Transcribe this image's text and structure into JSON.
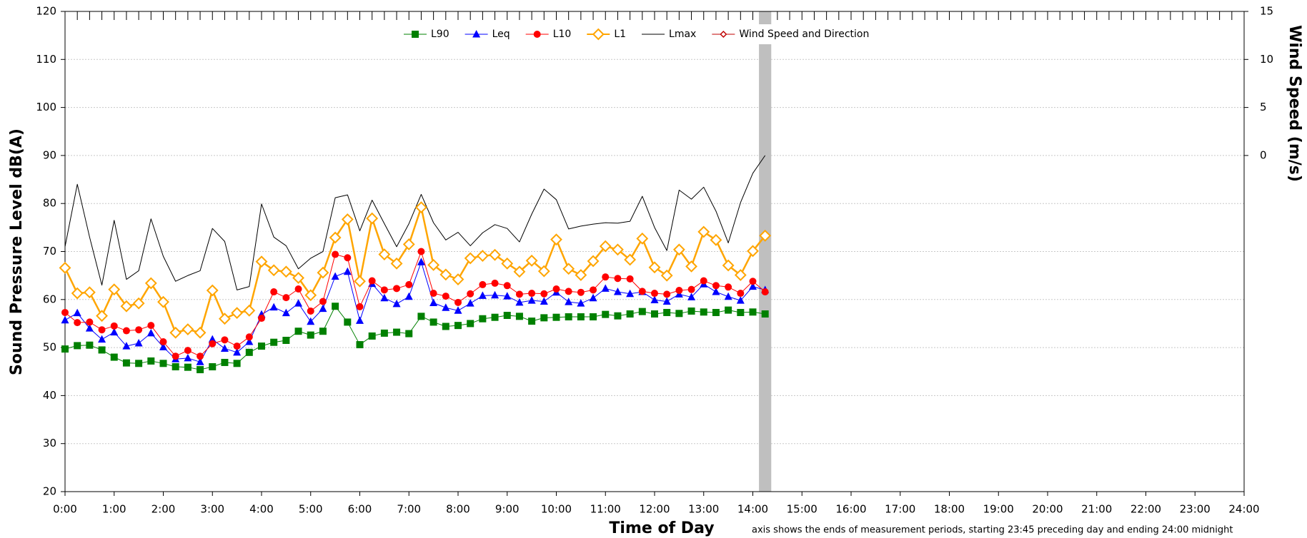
{
  "chart_data": {
    "type": "line",
    "x_label": "Time of Day",
    "y_label": "Sound Pressure Level dB(A)",
    "y2_label": "Wind Speed (m/s)",
    "note": "axis shows the ends of measurement periods, starting 23:45 preceding day and ending 24:00 midnight",
    "xlim": [
      0,
      24
    ],
    "xticks": [
      {
        "value": 0,
        "label": "0:00"
      },
      {
        "value": 1,
        "label": "1:00"
      },
      {
        "value": 2,
        "label": "2:00"
      },
      {
        "value": 3,
        "label": "3:00"
      },
      {
        "value": 4,
        "label": "4:00"
      },
      {
        "value": 5,
        "label": "5:00"
      },
      {
        "value": 6,
        "label": "6:00"
      },
      {
        "value": 7,
        "label": "7:00"
      },
      {
        "value": 8,
        "label": "8:00"
      },
      {
        "value": 9,
        "label": "9:00"
      },
      {
        "value": 10,
        "label": "10:00"
      },
      {
        "value": 11,
        "label": "11:00"
      },
      {
        "value": 12,
        "label": "12:00"
      },
      {
        "value": 13,
        "label": "13:00"
      },
      {
        "value": 14,
        "label": "14:00"
      },
      {
        "value": 15,
        "label": "15:00"
      },
      {
        "value": 16,
        "label": "16:00"
      },
      {
        "value": 17,
        "label": "17:00"
      },
      {
        "value": 18,
        "label": "18:00"
      },
      {
        "value": 19,
        "label": "19:00"
      },
      {
        "value": 20,
        "label": "20:00"
      },
      {
        "value": 21,
        "label": "21:00"
      },
      {
        "value": 22,
        "label": "22:00"
      },
      {
        "value": 23,
        "label": "23:00"
      },
      {
        "value": 24,
        "label": "24:00"
      }
    ],
    "ylim": [
      20,
      120
    ],
    "yticks": [
      20,
      30,
      40,
      50,
      60,
      70,
      80,
      90,
      100,
      110,
      120
    ],
    "y2lim": [
      -35,
      15
    ],
    "y2ticks": [
      0,
      5,
      10,
      15
    ],
    "grid": true,
    "legend": "top",
    "shaded_x": [
      14.125,
      14.375
    ],
    "shaded_color": "#bfbfbf",
    "x": [
      0,
      0.25,
      0.5,
      0.75,
      1,
      1.25,
      1.5,
      1.75,
      2,
      2.25,
      2.5,
      2.75,
      3,
      3.25,
      3.5,
      3.75,
      4,
      4.25,
      4.5,
      4.75,
      5,
      5.25,
      5.5,
      5.75,
      6,
      6.25,
      6.5,
      6.75,
      7,
      7.25,
      7.5,
      7.75,
      8,
      8.25,
      8.5,
      8.75,
      9,
      9.25,
      9.5,
      9.75,
      10,
      10.25,
      10.5,
      10.75,
      11,
      11.25,
      11.5,
      11.75,
      12,
      12.25,
      12.5,
      12.75,
      13,
      13.25,
      13.5,
      13.75,
      14,
      14.25
    ],
    "series": [
      {
        "name": "L90",
        "color": "#008000",
        "marker": "square",
        "line_width": 1,
        "values": [
          49.7,
          50.4,
          50.5,
          49.5,
          48,
          46.8,
          46.7,
          47.2,
          46.7,
          46,
          45.9,
          45.4,
          46,
          46.9,
          46.7,
          49,
          50.3,
          51.1,
          51.5,
          53.4,
          52.6,
          53.4,
          58.6,
          55.3,
          50.6,
          52.4,
          53,
          53.2,
          52.9,
          56.5,
          55.3,
          54.4,
          54.6,
          55,
          56,
          56.3,
          56.7,
          56.5,
          55.5,
          56.2,
          56.3,
          56.4,
          56.4,
          56.4,
          56.9,
          56.6,
          57,
          57.5,
          57,
          57.3,
          57.1,
          57.6,
          57.4,
          57.3,
          57.8,
          57.3,
          57.4,
          57
        ]
      },
      {
        "name": "Leq",
        "color": "#0000ff",
        "marker": "triangle",
        "line_width": 1,
        "values": [
          55.7,
          57.2,
          54,
          51.7,
          53.2,
          50.3,
          50.9,
          53,
          50.1,
          47.6,
          47.8,
          47,
          51.7,
          49.8,
          49,
          51.2,
          56.9,
          58.4,
          57.2,
          59.2,
          55.4,
          58.1,
          64.8,
          65.8,
          55.6,
          63.3,
          60.3,
          59.1,
          60.6,
          67.8,
          59.3,
          58.3,
          57.7,
          59.2,
          60.8,
          60.9,
          60.7,
          59.4,
          59.8,
          59.6,
          61.5,
          59.5,
          59.2,
          60.3,
          62.3,
          61.6,
          61.2,
          61.6,
          59.9,
          59.6,
          61.1,
          60.5,
          63.2,
          61.6,
          60.6,
          59.8,
          62.7,
          62
        ]
      },
      {
        "name": "L10",
        "color": "#ff0000",
        "marker": "circle",
        "line_width": 1,
        "values": [
          57.3,
          55.2,
          55.3,
          53.7,
          54.5,
          53.5,
          53.7,
          54.6,
          51.2,
          48.2,
          49.4,
          48.2,
          50.8,
          51.6,
          50.3,
          52.2,
          56.1,
          61.6,
          60.4,
          62.2,
          57.6,
          59.6,
          69.4,
          68.7,
          58.5,
          63.9,
          62,
          62.3,
          63.1,
          70,
          61.3,
          60.7,
          59.4,
          61.2,
          63.1,
          63.4,
          62.9,
          61.1,
          61.3,
          61.2,
          62.2,
          61.7,
          61.5,
          62,
          64.7,
          64.4,
          64.3,
          61.7,
          61.3,
          61.1,
          61.9,
          62.1,
          63.9,
          62.9,
          62.6,
          61.3,
          63.8,
          61.6
        ]
      },
      {
        "name": "L1",
        "color": "#ffa500",
        "marker": "diamond-open",
        "line_width": 2.5,
        "values": [
          66.6,
          61.3,
          61.5,
          56.6,
          62.1,
          58.6,
          59.2,
          63.4,
          59.5,
          53.1,
          53.8,
          53.1,
          61.9,
          56,
          57.2,
          57.7,
          67.9,
          66.1,
          65.8,
          64.5,
          60.9,
          65.6,
          72.9,
          76.7,
          63.8,
          76.9,
          69.4,
          67.5,
          71.5,
          79.2,
          67.2,
          65.2,
          64.2,
          68.6,
          69.1,
          69.3,
          67.5,
          65.8,
          68.1,
          65.9,
          72.5,
          66.4,
          65.1,
          68,
          71.1,
          70.4,
          68.3,
          72.7,
          66.7,
          65,
          70.4,
          66.9,
          74.1,
          72.4,
          67.1,
          65.1,
          70.1,
          73.3
        ]
      },
      {
        "name": "Lmax",
        "color": "#000000",
        "marker": "none",
        "line_width": 1,
        "values": [
          71,
          84,
          73,
          63,
          76.5,
          64.2,
          66,
          76.8,
          69,
          63.8,
          65,
          66,
          74.8,
          72.1,
          62,
          62.7,
          79.9,
          73,
          71.2,
          66.4,
          68.6,
          70,
          81.2,
          81.8,
          74.3,
          80.7,
          75.8,
          71,
          75.8,
          81.9,
          76,
          72.4,
          74,
          71.2,
          73.9,
          75.6,
          74.8,
          72,
          77.8,
          83,
          80.8,
          74.7,
          75.3,
          75.7,
          76,
          75.9,
          76.3,
          81.5,
          75,
          70.2,
          82.8,
          80.9,
          83.4,
          78.4,
          71.8,
          80.2,
          86.3,
          90
        ]
      },
      {
        "name": "Wind Speed and Direction",
        "color": "#c00000",
        "marker": "diamond-small",
        "line_width": 1,
        "axis": "y2",
        "values": [
          null,
          null,
          null,
          null,
          null,
          null,
          null,
          null,
          null,
          null,
          null,
          null,
          null,
          null,
          null,
          null,
          null,
          null,
          null,
          null,
          null,
          null,
          null,
          null,
          null,
          null,
          null,
          null,
          null,
          null,
          null,
          null,
          null,
          null,
          null,
          null,
          null,
          null,
          null,
          null,
          null,
          null,
          null,
          null,
          null,
          null,
          null,
          null,
          null,
          null,
          null,
          null,
          null,
          null,
          null,
          null,
          null,
          null
        ]
      }
    ]
  }
}
